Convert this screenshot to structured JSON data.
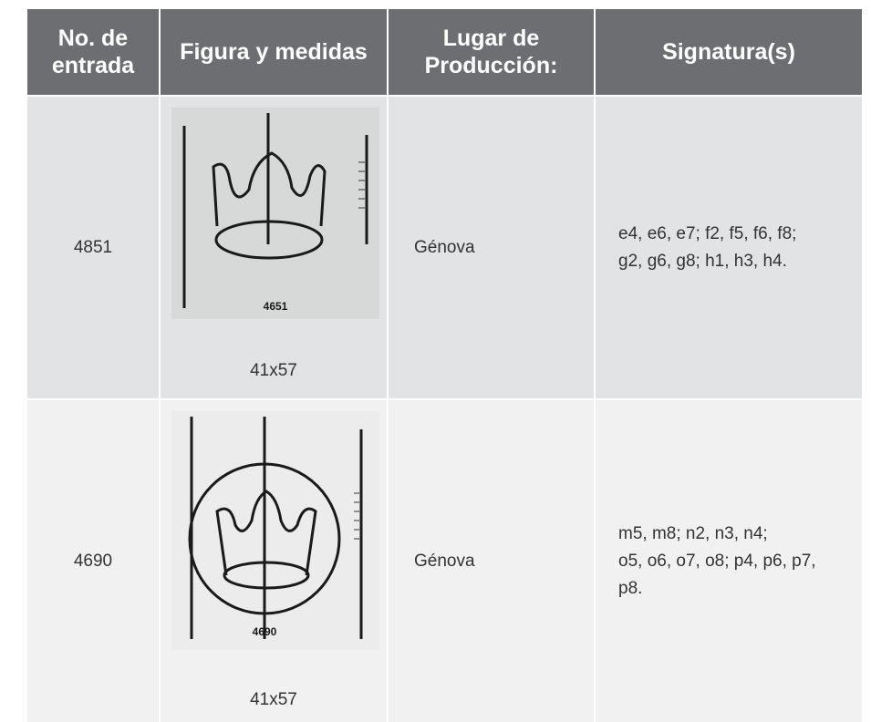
{
  "header": {
    "columns": [
      "No. de entrada",
      "Figura y medidas",
      "Lugar de Producción:",
      "Signatura(s)"
    ]
  },
  "table": {
    "rows": [
      {
        "entry": "4851",
        "image_label": "4651",
        "size": "41x57",
        "place": "Génova",
        "signatures": [
          "e4, e6, e7; f2, f5, f6, f8;",
          "g2, g6, g8; h1, h3, h4."
        ]
      },
      {
        "entry": "4690",
        "image_label": "4690",
        "size": "41x57",
        "place": "Génova",
        "signatures": [
          "m5, m8; n2, n3, n4;",
          "o5, o6, o7, o8; p4, p6, p7,",
          "p8."
        ]
      }
    ]
  }
}
